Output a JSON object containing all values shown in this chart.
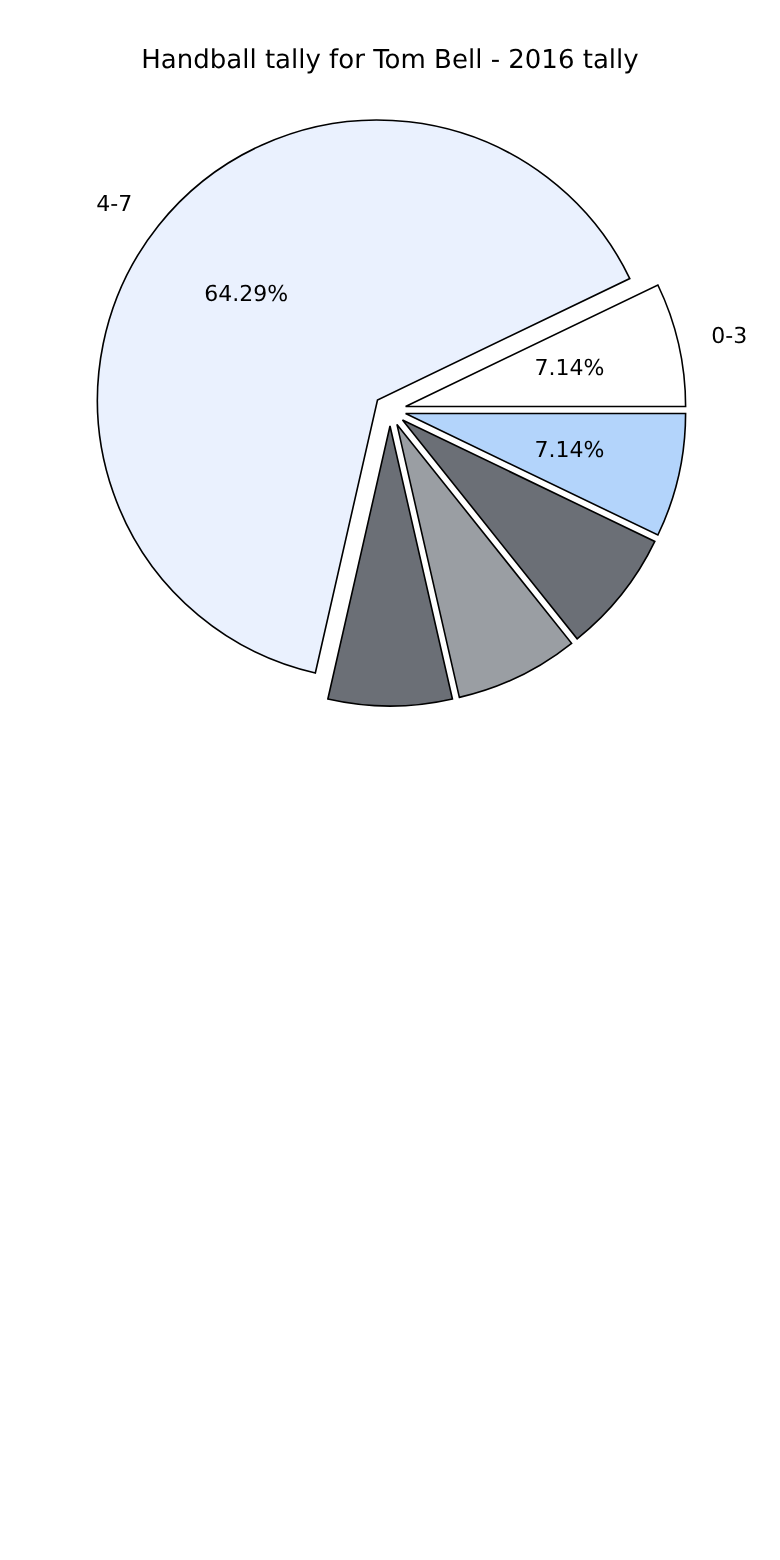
{
  "chart_data": {
    "type": "pie",
    "title": "Handball tally for Tom Bell - 2016 tally",
    "categories": [
      "0-3",
      "4-7",
      null,
      null,
      null,
      null
    ],
    "values": [
      7.14,
      64.29,
      7.14,
      7.14,
      7.14,
      7.14
    ],
    "colors": [
      "#ffffff",
      "#eaf1fe",
      "#6b6f76",
      "#9a9ea3",
      "#6b6f76",
      "#b3d4fb"
    ],
    "value_labels": [
      "7.14%",
      "64.29%",
      null,
      null,
      null,
      "7.14%"
    ],
    "legend": false
  }
}
